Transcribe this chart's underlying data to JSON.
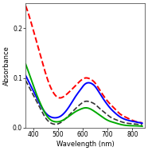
{
  "title": "",
  "xlabel": "Wavelength (nm)",
  "ylabel": "Absorbance",
  "xlim": [
    370,
    850
  ],
  "ylim": [
    0.0,
    0.25
  ],
  "yticks": [
    0.0,
    0.1,
    0.2
  ],
  "xticks": [
    400,
    500,
    600,
    700,
    800
  ],
  "background_color": "#ffffff",
  "curves": [
    {
      "label": "red_dashed",
      "color": "#ff0000",
      "linestyle": "dashed",
      "linewidth": 1.4,
      "points_x": [
        370,
        390,
        410,
        430,
        450,
        470,
        490,
        510,
        530,
        550,
        570,
        590,
        610,
        630,
        650,
        670,
        690,
        710,
        730,
        750,
        770,
        800,
        840
      ],
      "points_y": [
        0.245,
        0.215,
        0.18,
        0.145,
        0.11,
        0.082,
        0.065,
        0.06,
        0.065,
        0.074,
        0.084,
        0.094,
        0.1,
        0.098,
        0.09,
        0.075,
        0.06,
        0.048,
        0.038,
        0.028,
        0.022,
        0.015,
        0.01
      ]
    },
    {
      "label": "blue_solid",
      "color": "#0000ff",
      "linestyle": "solid",
      "linewidth": 1.4,
      "points_x": [
        370,
        390,
        410,
        430,
        450,
        470,
        490,
        510,
        530,
        550,
        570,
        590,
        610,
        630,
        650,
        670,
        690,
        710,
        730,
        750,
        770,
        800,
        840
      ],
      "points_y": [
        0.105,
        0.085,
        0.065,
        0.045,
        0.03,
        0.022,
        0.02,
        0.023,
        0.032,
        0.046,
        0.062,
        0.076,
        0.088,
        0.09,
        0.083,
        0.068,
        0.053,
        0.04,
        0.03,
        0.022,
        0.017,
        0.013,
        0.009
      ]
    },
    {
      "label": "black_dashed",
      "color": "#333333",
      "linestyle": "dashed",
      "linewidth": 1.2,
      "points_x": [
        370,
        390,
        410,
        430,
        450,
        470,
        490,
        510,
        530,
        550,
        570,
        590,
        610,
        630,
        650,
        670,
        690,
        710,
        730,
        750,
        770,
        800,
        840
      ],
      "points_y": [
        0.095,
        0.076,
        0.057,
        0.038,
        0.02,
        0.01,
        0.007,
        0.01,
        0.018,
        0.028,
        0.038,
        0.047,
        0.053,
        0.052,
        0.047,
        0.038,
        0.03,
        0.022,
        0.017,
        0.013,
        0.01,
        0.008,
        0.006
      ]
    },
    {
      "label": "green_solid",
      "color": "#00aa00",
      "linestyle": "solid",
      "linewidth": 1.4,
      "points_x": [
        370,
        390,
        410,
        430,
        450,
        470,
        490,
        510,
        530,
        550,
        570,
        590,
        610,
        630,
        650,
        670,
        690,
        710,
        730,
        750,
        770,
        800,
        840
      ],
      "points_y": [
        0.128,
        0.1,
        0.072,
        0.048,
        0.028,
        0.016,
        0.012,
        0.013,
        0.018,
        0.025,
        0.032,
        0.037,
        0.04,
        0.038,
        0.032,
        0.025,
        0.018,
        0.013,
        0.01,
        0.007,
        0.005,
        0.004,
        0.003
      ]
    }
  ]
}
